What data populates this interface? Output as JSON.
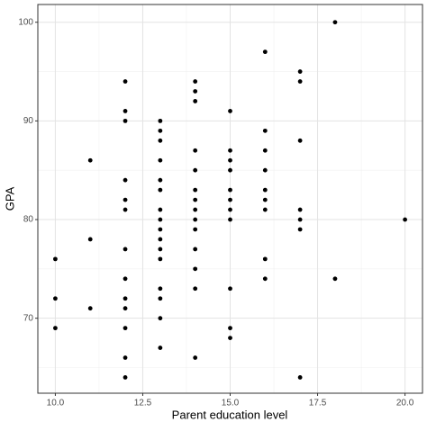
{
  "chart_data": {
    "type": "scatter",
    "x_label": "Parent education level",
    "y_label": "GPA",
    "x": [
      10,
      10,
      10,
      11,
      11,
      11,
      12,
      12,
      12,
      12,
      12,
      12,
      12,
      12,
      12,
      12,
      12,
      12,
      12,
      13,
      13,
      13,
      13,
      13,
      13,
      13,
      13,
      13,
      13,
      13,
      13,
      13,
      13,
      13,
      13,
      14,
      14,
      14,
      14,
      14,
      14,
      14,
      14,
      14,
      14,
      14,
      14,
      14,
      14,
      15,
      15,
      15,
      15,
      15,
      15,
      15,
      15,
      15,
      15,
      15,
      16,
      16,
      16,
      16,
      16,
      16,
      16,
      16,
      16,
      17,
      17,
      17,
      17,
      17,
      17,
      17,
      18,
      18,
      20
    ],
    "values": [
      76,
      72,
      69,
      86,
      78,
      71,
      94,
      91,
      90,
      84,
      82,
      81,
      77,
      74,
      72,
      71,
      69,
      66,
      64,
      90,
      89,
      88,
      86,
      84,
      83,
      81,
      80,
      79,
      78,
      77,
      76,
      73,
      72,
      70,
      67,
      94,
      93,
      92,
      87,
      85,
      83,
      82,
      81,
      80,
      79,
      77,
      75,
      73,
      66,
      91,
      87,
      86,
      85,
      83,
      82,
      81,
      80,
      73,
      69,
      68,
      97,
      89,
      87,
      85,
      83,
      82,
      81,
      76,
      74,
      95,
      94,
      88,
      81,
      80,
      79,
      64,
      100,
      74,
      80
    ],
    "color": "#000000",
    "xlim": [
      9.5,
      20.5
    ],
    "ylim": [
      62.4,
      101.8
    ],
    "xticks": [
      {
        "value": 10,
        "label": "10.0"
      },
      {
        "value": 12.5,
        "label": "12.5"
      },
      {
        "value": 15,
        "label": "15.0"
      },
      {
        "value": 17.5,
        "label": "17.5"
      },
      {
        "value": 20,
        "label": "20.0"
      }
    ],
    "yticks": [
      70,
      80,
      90,
      100
    ],
    "x_minor_grid": [
      11.25,
      13.75,
      16.25,
      18.75
    ],
    "y_minor_grid": [
      65,
      75,
      85,
      95
    ],
    "grid": true
  }
}
